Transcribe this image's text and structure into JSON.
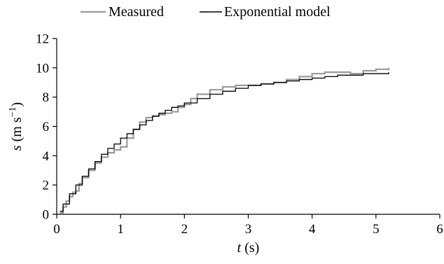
{
  "chart_data": {
    "type": "line",
    "xlabel": {
      "italic": "t",
      "rest": " (s)"
    },
    "ylabel": {
      "italic": "s",
      "rest": " (m s",
      "sup": "−1",
      "close": ")"
    },
    "xlim": [
      0,
      6
    ],
    "ylim": [
      0,
      12
    ],
    "x_ticks": [
      "0",
      "1",
      "2",
      "3",
      "4",
      "5",
      "6"
    ],
    "y_ticks": [
      "0",
      "2",
      "4",
      "6",
      "8",
      "10",
      "12"
    ],
    "grid": false,
    "legend_position": "top",
    "series": [
      {
        "name": "Measured",
        "color": "#9a9a9a",
        "points": [
          [
            0.05,
            0.1
          ],
          [
            0.1,
            0.5
          ],
          [
            0.15,
            0.9
          ],
          [
            0.2,
            1.2
          ],
          [
            0.25,
            1.5
          ],
          [
            0.3,
            1.6
          ],
          [
            0.35,
            2.1
          ],
          [
            0.4,
            2.5
          ],
          [
            0.5,
            3.0
          ],
          [
            0.6,
            3.5
          ],
          [
            0.7,
            3.9
          ],
          [
            0.8,
            4.2
          ],
          [
            0.9,
            4.4
          ],
          [
            1.0,
            4.6
          ],
          [
            1.1,
            5.2
          ],
          [
            1.2,
            5.8
          ],
          [
            1.3,
            6.3
          ],
          [
            1.4,
            6.6
          ],
          [
            1.5,
            6.7
          ],
          [
            1.6,
            6.8
          ],
          [
            1.7,
            6.9
          ],
          [
            1.8,
            7.0
          ],
          [
            1.9,
            7.3
          ],
          [
            2.0,
            7.5
          ],
          [
            2.1,
            7.9
          ],
          [
            2.2,
            8.2
          ],
          [
            2.4,
            8.5
          ],
          [
            2.6,
            8.7
          ],
          [
            2.8,
            8.8
          ],
          [
            3.0,
            8.8
          ],
          [
            3.2,
            8.9
          ],
          [
            3.4,
            9.0
          ],
          [
            3.6,
            9.2
          ],
          [
            3.8,
            9.4
          ],
          [
            4.0,
            9.6
          ],
          [
            4.2,
            9.7
          ],
          [
            4.4,
            9.7
          ],
          [
            4.6,
            9.6
          ],
          [
            4.8,
            9.8
          ],
          [
            5.0,
            9.9
          ],
          [
            5.2,
            10.0
          ]
        ]
      },
      {
        "name": "Exponential model",
        "color": "#000000",
        "points": [
          [
            0.05,
            0.2
          ],
          [
            0.1,
            0.7
          ],
          [
            0.2,
            1.4
          ],
          [
            0.3,
            2.0
          ],
          [
            0.4,
            2.6
          ],
          [
            0.5,
            3.1
          ],
          [
            0.6,
            3.6
          ],
          [
            0.7,
            4.1
          ],
          [
            0.8,
            4.5
          ],
          [
            0.9,
            4.8
          ],
          [
            1.0,
            5.2
          ],
          [
            1.1,
            5.5
          ],
          [
            1.2,
            5.8
          ],
          [
            1.3,
            6.1
          ],
          [
            1.4,
            6.4
          ],
          [
            1.5,
            6.7
          ],
          [
            1.6,
            6.9
          ],
          [
            1.7,
            7.1
          ],
          [
            1.8,
            7.3
          ],
          [
            1.9,
            7.4
          ],
          [
            2.0,
            7.6
          ],
          [
            2.2,
            7.9
          ],
          [
            2.4,
            8.2
          ],
          [
            2.6,
            8.4
          ],
          [
            2.8,
            8.6
          ],
          [
            3.0,
            8.8
          ],
          [
            3.2,
            8.9
          ],
          [
            3.4,
            9.0
          ],
          [
            3.6,
            9.1
          ],
          [
            3.8,
            9.2
          ],
          [
            4.0,
            9.3
          ],
          [
            4.2,
            9.4
          ],
          [
            4.4,
            9.5
          ],
          [
            4.6,
            9.5
          ],
          [
            4.8,
            9.6
          ],
          [
            5.0,
            9.6
          ],
          [
            5.2,
            9.7
          ]
        ]
      }
    ]
  }
}
